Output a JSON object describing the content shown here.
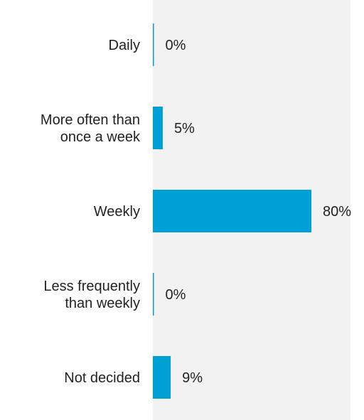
{
  "chart_data": {
    "type": "bar",
    "orientation": "horizontal",
    "categories": [
      [
        "Daily"
      ],
      [
        "More often than",
        "once a week"
      ],
      [
        "Weekly"
      ],
      [
        "Less frequently",
        "than weekly"
      ],
      [
        "Not decided"
      ]
    ],
    "values": [
      0,
      5,
      80,
      0,
      9
    ],
    "value_labels": [
      "0%",
      "5%",
      "80%",
      "0%",
      "9%"
    ],
    "xlim": [
      0,
      100
    ],
    "bar_color": "#009fd4",
    "plot_background": "#f2f2f2",
    "grid": false,
    "legend": "none"
  }
}
